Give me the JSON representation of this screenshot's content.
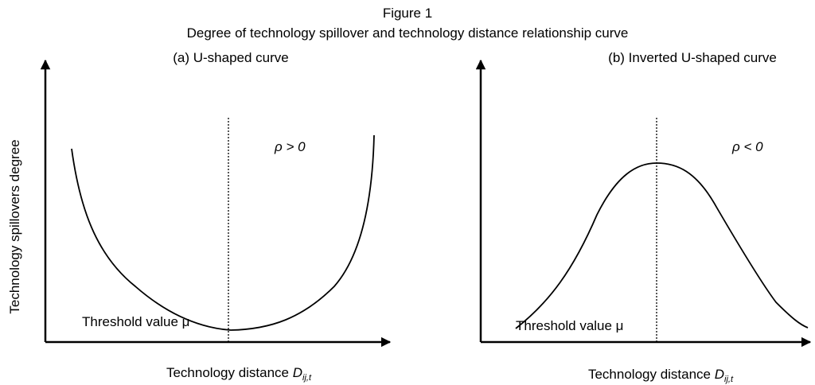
{
  "header": {
    "figure": "Figure 1",
    "title": "Degree of technology spillover and technology distance relationship curve"
  },
  "y_label": "Technology spillovers degree",
  "panels": [
    {
      "title": "(a) U-shaped curve",
      "rho": "ρ > 0",
      "threshold": "Threshold value μ",
      "x_label": {
        "text": "Technology distance ",
        "symbol": "D",
        "subscript": "ij,t"
      }
    },
    {
      "title": "(b) Inverted U-shaped curve",
      "rho": "ρ < 0",
      "threshold": "Threshold value μ",
      "x_label": {
        "text": "Technology distance ",
        "symbol": "D",
        "subscript": "ij,t"
      }
    }
  ]
}
